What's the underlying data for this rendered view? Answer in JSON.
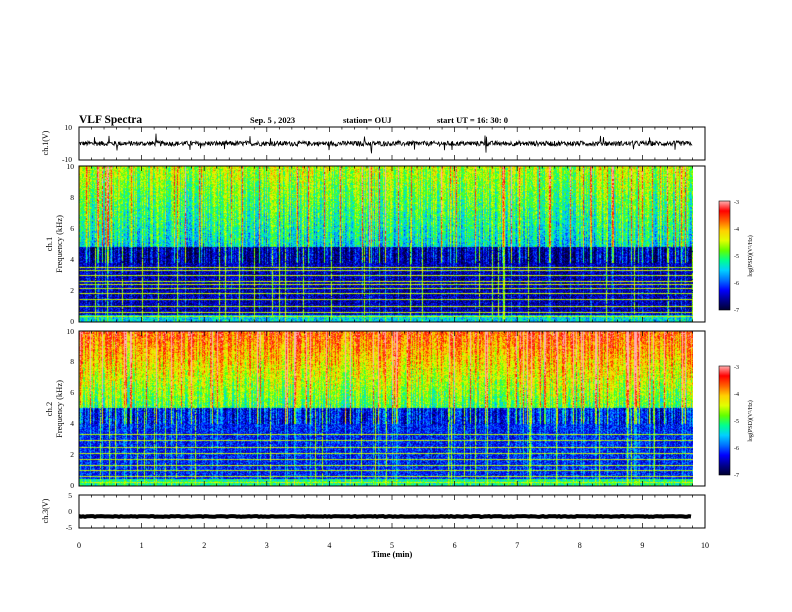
{
  "header": {
    "title": "VLF Spectra",
    "date": "Sep. 5  , 2023",
    "station": "station= OUJ",
    "start": "start  UT  =   16: 30: 0"
  },
  "chart_data": [
    {
      "type": "line",
      "name": "ch1-waveform",
      "ylabel": "ch.1(V)",
      "ylim": [
        -10,
        10
      ],
      "yticks": [
        "10",
        "-10"
      ],
      "baseline": 0,
      "noise_amplitude": 1.5,
      "spike_amplitude": 6
    },
    {
      "type": "heatmap",
      "name": "ch1-spectrogram",
      "ylabel": "ch.1\nFrequency (kHz)",
      "ylim": [
        0,
        10
      ],
      "yticks": [
        "0",
        "2",
        "4",
        "6",
        "8",
        "10"
      ],
      "colorbar": {
        "label": "log(PSD)(V²/Hz)",
        "range": [
          -7,
          -3
        ],
        "ticks": [
          "-3",
          "-4",
          "-5",
          "-6",
          "-7"
        ]
      },
      "line_frequencies_khz": [
        0.3,
        0.6,
        1.0,
        1.4,
        1.8,
        2.1,
        2.4,
        2.6,
        3.0,
        3.3,
        3.5
      ]
    },
    {
      "type": "heatmap",
      "name": "ch2-spectrogram",
      "ylabel": "ch.2\nFrequency (kHz)",
      "ylim": [
        0,
        10
      ],
      "yticks": [
        "0",
        "2",
        "4",
        "6",
        "8",
        "10"
      ],
      "colorbar": {
        "label": "log(PSD)(V²/Hz)",
        "range": [
          -7,
          -3
        ],
        "ticks": [
          "-3",
          "-4",
          "-5",
          "-6",
          "-7"
        ]
      },
      "line_frequencies_khz": [
        0.2,
        0.6,
        1.0,
        1.3,
        1.7,
        2.1,
        2.5,
        2.9,
        3.3
      ]
    },
    {
      "type": "line",
      "name": "ch3-waveform",
      "ylabel": "ch.3(V)",
      "ylim": [
        -5,
        5
      ],
      "yticks": [
        "5",
        "0",
        "-5"
      ],
      "baseline": -1.5,
      "noise_amplitude": 0.25
    }
  ],
  "xaxis": {
    "label": "Time  (min)",
    "xlim": [
      0,
      10
    ],
    "ticks": [
      "0",
      "1",
      "2",
      "3",
      "4",
      "5",
      "6",
      "7",
      "8",
      "9",
      "10"
    ],
    "data_end": 9.8
  },
  "colors": {
    "colormap": [
      "#000030",
      "#000090",
      "#0000ff",
      "#0070ff",
      "#00d0ff",
      "#00ff90",
      "#60ff00",
      "#e0ff00",
      "#ffd000",
      "#ff6000",
      "#ff0000",
      "#ffb0b0"
    ]
  }
}
